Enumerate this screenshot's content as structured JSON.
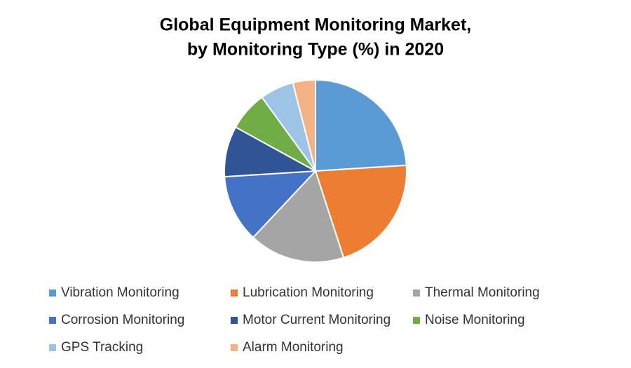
{
  "chart_data": {
    "type": "pie",
    "title": [
      "Global Equipment Monitoring Market,",
      "by Monitoring Type (%) in 2020"
    ],
    "categories": [
      "Vibration Monitoring",
      "Lubrication Monitoring",
      "Thermal Monitoring",
      "Corrosion Monitoring",
      "Motor Current Monitoring",
      "Noise Monitoring",
      "GPS Tracking",
      "Alarm Monitoring"
    ],
    "values": [
      24,
      21,
      17,
      12,
      9,
      7,
      6,
      4
    ],
    "colors": [
      "#5b9bd5",
      "#ed7d31",
      "#a5a5a5",
      "#4472c4",
      "#2f5597",
      "#70ad47",
      "#9dc3e6",
      "#f4b183"
    ],
    "legend": "bottom"
  }
}
